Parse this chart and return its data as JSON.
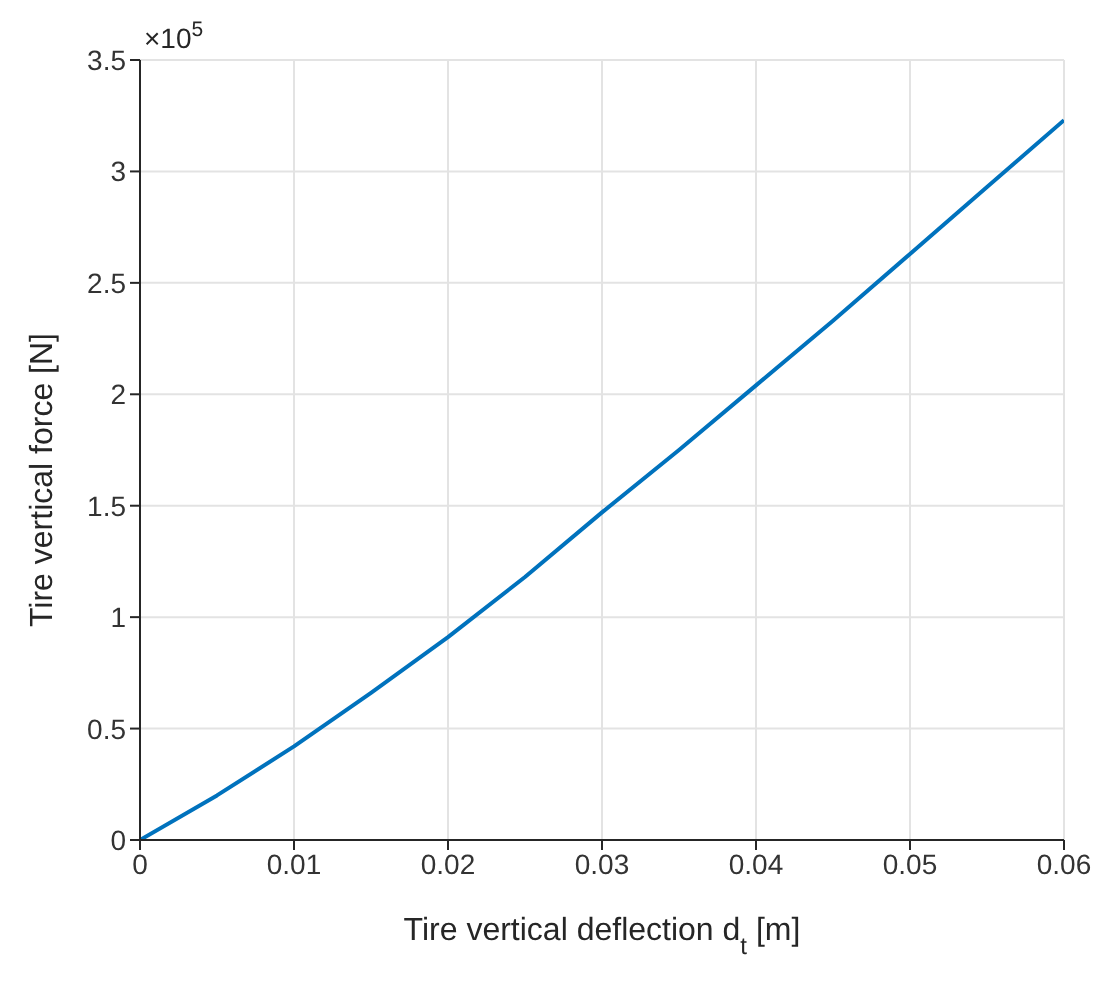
{
  "chart_data": {
    "type": "line",
    "xlabel": "Tire vertical deflection d$_{t}$ [m]",
    "ylabel": "Tire vertical force [N]",
    "annotations": [
      "×10$^{5}$"
    ],
    "x": [
      0,
      0.005,
      0.01,
      0.015,
      0.02,
      0.025,
      0.03,
      0.035,
      0.04,
      0.045,
      0.05,
      0.055,
      0.06
    ],
    "series": [
      {
        "color": "#0072bd",
        "values": [
          0,
          0.2,
          0.42,
          0.66,
          0.91,
          1.18,
          1.47,
          1.75,
          2.04,
          2.33,
          2.63,
          2.93,
          3.23
        ]
      }
    ],
    "xlim": [
      0,
      0.06
    ],
    "xticks": [
      0,
      0.01,
      0.02,
      0.03,
      0.04,
      0.05,
      0.06
    ],
    "ylim": [
      0,
      3.5
    ],
    "yticks": [
      0,
      0.5,
      1,
      1.5,
      2,
      2.5,
      3,
      3.5
    ],
    "grid": true,
    "legend": false,
    "marker": "none",
    "line_style": "solid"
  }
}
